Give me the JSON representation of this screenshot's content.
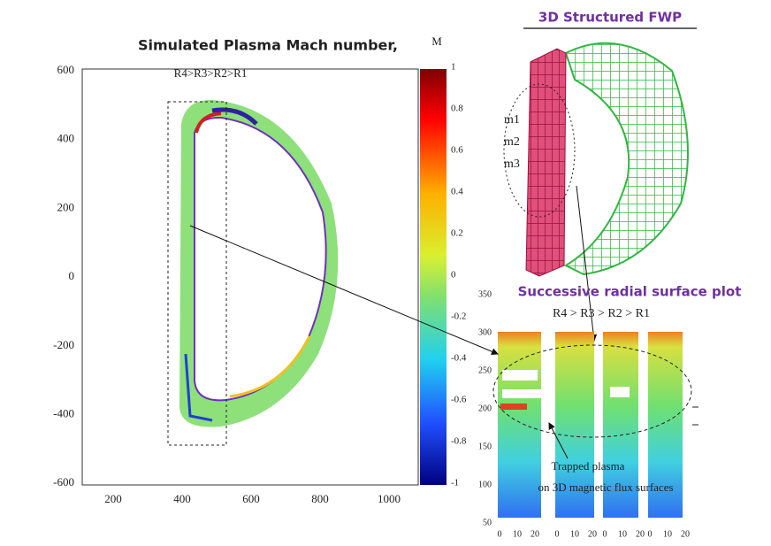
{
  "left_plot": {
    "title": "Simulated Plasma Mach number,",
    "subtitle": "R4>R3>R2>R1",
    "x_ticks": [
      "200",
      "400",
      "600",
      "800",
      "1000"
    ],
    "y_ticks": [
      "600",
      "400",
      "200",
      "0",
      "-200",
      "-400",
      "-600"
    ]
  },
  "colorbar": {
    "label": "M",
    "ticks": [
      "1",
      "0.8",
      "0.6",
      "0.4",
      "0.2",
      "0",
      "-0.2",
      "-0.4",
      "-0.6",
      "-0.8",
      "-1"
    ]
  },
  "fwp": {
    "title": "3D Structured FWP",
    "labels": [
      "m1",
      "m2",
      "m3"
    ]
  },
  "surface_plot": {
    "title": "Successive radial surface plot",
    "subtitle": "R4 > R3 > R2 > R1",
    "y_ticks": [
      "350",
      "300",
      "250",
      "200",
      "150",
      "100",
      "50"
    ],
    "x_ticks": [
      "0",
      "10",
      "20",
      "0",
      "10",
      "20",
      "0",
      "10",
      "20",
      "0",
      "10",
      "20"
    ],
    "annotation": [
      "Trapped plasma",
      "on 3D magnetic flux surfaces"
    ]
  }
}
